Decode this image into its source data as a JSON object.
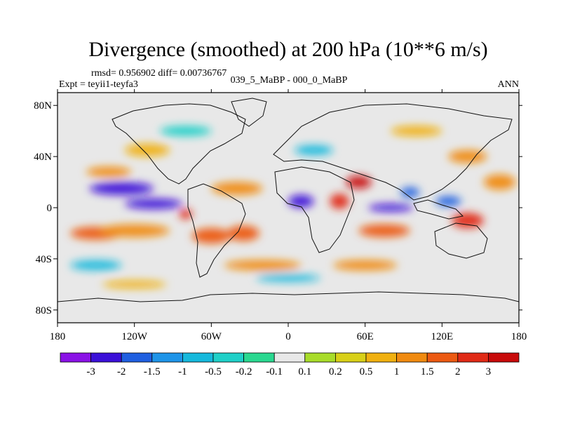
{
  "chart_data": {
    "type": "heatmap",
    "title": "Divergence (smoothed) at 200 hPa (10**6 m/s)",
    "stats_text": "rmsd= 0.956902 diff= 0.00736767",
    "expt_text": "Expt = teyii1-teyfa3",
    "center_text": "039_5_MaBP - 000_0_MaBP",
    "season_text": "ANN",
    "x_ticks": [
      "180",
      "120W",
      "60W",
      "0",
      "60E",
      "120E",
      "180"
    ],
    "y_ticks": [
      "80N",
      "40N",
      "0",
      "40S",
      "80S"
    ],
    "lon_range": [
      -180,
      180
    ],
    "lat_range": [
      -90,
      90
    ],
    "colorbar_labels": [
      "-3",
      "-2",
      "-1.5",
      "-1",
      "-0.5",
      "-0.2",
      "-0.1",
      "0.1",
      "0.2",
      "0.5",
      "1",
      "1.5",
      "2",
      "3"
    ],
    "colorbar_colors": [
      "#8a12e6",
      "#3b10d8",
      "#1f5fe0",
      "#1e94e8",
      "#15b8dc",
      "#1fd0c8",
      "#2ad890",
      "#e8e8e8",
      "#a8dc2a",
      "#d8d018",
      "#f0b010",
      "#f08a10",
      "#ec5a12",
      "#e02a16",
      "#c80a0a"
    ],
    "field_blobs": [
      {
        "lon": -130,
        "lat": 15,
        "w": 50,
        "h": 10,
        "v": -3
      },
      {
        "lon": -105,
        "lat": 3,
        "w": 45,
        "h": 8,
        "v": -3
      },
      {
        "lon": -150,
        "lat": -20,
        "w": 40,
        "h": 10,
        "v": 1.5
      },
      {
        "lon": -120,
        "lat": -18,
        "w": 55,
        "h": 10,
        "v": 1
      },
      {
        "lon": -140,
        "lat": 28,
        "w": 35,
        "h": 8,
        "v": 1
      },
      {
        "lon": -80,
        "lat": -5,
        "w": 10,
        "h": 8,
        "v": 2
      },
      {
        "lon": -60,
        "lat": -22,
        "w": 30,
        "h": 12,
        "v": 1.5
      },
      {
        "lon": -35,
        "lat": -20,
        "w": 25,
        "h": 12,
        "v": 1.5
      },
      {
        "lon": -40,
        "lat": 15,
        "w": 40,
        "h": 10,
        "v": 1
      },
      {
        "lon": 10,
        "lat": 5,
        "w": 20,
        "h": 10,
        "v": -3
      },
      {
        "lon": 40,
        "lat": 5,
        "w": 15,
        "h": 12,
        "v": 2
      },
      {
        "lon": 55,
        "lat": 20,
        "w": 20,
        "h": 10,
        "v": 3
      },
      {
        "lon": 80,
        "lat": 0,
        "w": 35,
        "h": 6,
        "v": -3
      },
      {
        "lon": 95,
        "lat": 12,
        "w": 15,
        "h": 8,
        "v": -2
      },
      {
        "lon": 75,
        "lat": -18,
        "w": 40,
        "h": 10,
        "v": 1.5
      },
      {
        "lon": 140,
        "lat": -10,
        "w": 25,
        "h": 12,
        "v": 2
      },
      {
        "lon": 125,
        "lat": 5,
        "w": 20,
        "h": 8,
        "v": -2
      },
      {
        "lon": 165,
        "lat": 20,
        "w": 25,
        "h": 12,
        "v": 1
      },
      {
        "lon": -110,
        "lat": 45,
        "w": 35,
        "h": 10,
        "v": 0.5
      },
      {
        "lon": -20,
        "lat": -45,
        "w": 60,
        "h": 8,
        "v": 1
      },
      {
        "lon": 60,
        "lat": -45,
        "w": 50,
        "h": 8,
        "v": 1
      },
      {
        "lon": -150,
        "lat": -45,
        "w": 40,
        "h": 8,
        "v": -1
      },
      {
        "lon": 20,
        "lat": 45,
        "w": 30,
        "h": 8,
        "v": -1
      },
      {
        "lon": 140,
        "lat": 40,
        "w": 30,
        "h": 10,
        "v": 1
      },
      {
        "lon": 0,
        "lat": -55,
        "w": 50,
        "h": 6,
        "v": -1
      },
      {
        "lon": -80,
        "lat": 60,
        "w": 40,
        "h": 8,
        "v": -0.5
      },
      {
        "lon": 100,
        "lat": 60,
        "w": 40,
        "h": 8,
        "v": 0.5
      },
      {
        "lon": -120,
        "lat": -60,
        "w": 50,
        "h": 6,
        "v": 0.5
      }
    ]
  }
}
